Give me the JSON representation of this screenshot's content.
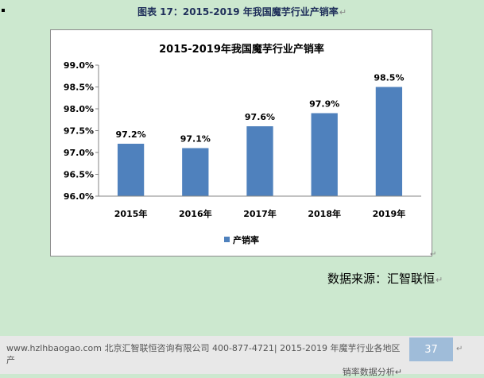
{
  "caption": {
    "text": "图表  17：2015-2019 年我国魔芋行业产销率",
    "mark": "↵"
  },
  "source": {
    "text": "数据来源：汇智联恒",
    "mark": "↵"
  },
  "chart_mark": "↵",
  "footer": {
    "line1": "www.hzlhbaogao.com 北京汇智联恒咨询有限公司  400-877-4721| 2015-2019 年魔芋行业各地区产",
    "line2": "销率数据分析↵",
    "page_number": "37",
    "page_mark": "↵"
  },
  "colors": {
    "bar": "#4f81bd",
    "background": "#cce8cf"
  },
  "chart_data": {
    "type": "bar",
    "title": "2015-2019年我国魔芋行业产销率",
    "categories": [
      "2015年",
      "2016年",
      "2017年",
      "2018年",
      "2019年"
    ],
    "series": [
      {
        "name": "产销率",
        "values": [
          97.2,
          97.1,
          97.6,
          97.9,
          98.5
        ]
      }
    ],
    "data_labels": [
      "97.2%",
      "97.1%",
      "97.6%",
      "97.9%",
      "98.5%"
    ],
    "yticks": [
      "96.0%",
      "96.5%",
      "97.0%",
      "97.5%",
      "98.0%",
      "98.5%",
      "99.0%"
    ],
    "ylim": [
      96.0,
      99.0
    ],
    "ystep": 0.5,
    "xlabel": "",
    "ylabel": "",
    "grid": false,
    "legend": "bottom"
  }
}
